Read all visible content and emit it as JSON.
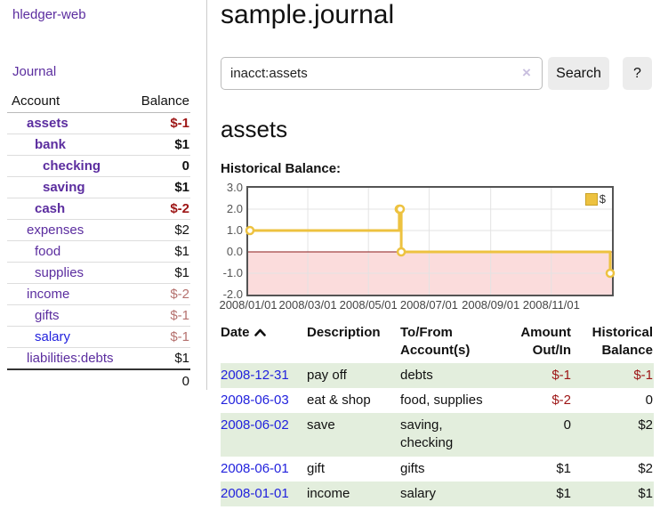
{
  "colors": {
    "purple": "#5b2d9f",
    "linkblue": "#2222dd",
    "negred": "#9d1515",
    "dimred": "#b5716e",
    "rowgreen": "#e3eedd",
    "seriesyellow": "#edc240",
    "pinkregion": "#fbdcdc",
    "zeroline": "#8b1a1a"
  },
  "sidebar": {
    "brand": "hledger-web",
    "journal_label": "Journal",
    "accounts_table": {
      "headers": {
        "account": "Account",
        "balance": "Balance"
      },
      "rows": [
        {
          "label": "assets",
          "depth": 1,
          "bold": true,
          "balance": "$-1",
          "tone": "neg"
        },
        {
          "label": "bank",
          "depth": 2,
          "bold": true,
          "balance": "$1",
          "tone": "pos"
        },
        {
          "label": "checking",
          "depth": 3,
          "bold": true,
          "balance": "0",
          "tone": "pos"
        },
        {
          "label": "saving",
          "depth": 3,
          "bold": true,
          "balance": "$1",
          "tone": "pos"
        },
        {
          "label": "cash",
          "depth": 2,
          "bold": true,
          "balance": "$-2",
          "tone": "neg"
        },
        {
          "label": "expenses",
          "depth": 1,
          "bold": false,
          "balance": "$2",
          "tone": "pos"
        },
        {
          "label": "food",
          "depth": 2,
          "bold": false,
          "balance": "$1",
          "tone": "pos"
        },
        {
          "label": "supplies",
          "depth": 2,
          "bold": false,
          "balance": "$1",
          "tone": "pos"
        },
        {
          "label": "income",
          "depth": 1,
          "bold": false,
          "balance": "$-2",
          "tone": "dim"
        },
        {
          "label": "gifts",
          "depth": 2,
          "bold": false,
          "balance": "$-1",
          "tone": "dim"
        },
        {
          "label": "salary",
          "depth": 2,
          "bold": false,
          "blue": true,
          "balance": "$-1",
          "tone": "dim"
        },
        {
          "label": "liabilities:debts",
          "depth": 1,
          "bold": false,
          "balance": "$1",
          "tone": "pos"
        }
      ],
      "total": "0"
    }
  },
  "header": {
    "title": "sample.journal"
  },
  "search": {
    "query": "inacct:assets",
    "clear_icon": "×",
    "search_label": "Search",
    "help_label": "?"
  },
  "account_page": {
    "heading": "assets",
    "chart_label": "Historical Balance:"
  },
  "chart_data": {
    "type": "line",
    "title": "Historical Balance",
    "step": true,
    "x": [
      "2008-01-01",
      "2008-06-01",
      "2008-06-02",
      "2008-06-03",
      "2008-12-31"
    ],
    "values": [
      1,
      2,
      2,
      0,
      -1
    ],
    "series": [
      {
        "name": "$",
        "color": "#edc240",
        "values": [
          1,
          2,
          2,
          0,
          -1
        ]
      }
    ],
    "xrange": [
      "2008-01-01",
      "2009-01-01"
    ],
    "ylim": [
      -2,
      3
    ],
    "yticks": [
      "3.0",
      "2.0",
      "1.0",
      "0.0",
      "-1.0",
      "-2.0"
    ],
    "xticks": [
      "2008/01/01",
      "2008/03/01",
      "2008/05/01",
      "2008/07/01",
      "2008/09/01",
      "2008/11/01"
    ],
    "grid": true,
    "legend_position": "top-right",
    "legend": [
      {
        "label": "$",
        "color": "#edc240"
      }
    ],
    "negative_region": {
      "below": 0,
      "color": "#fbdcdc"
    },
    "zero_line_color": "#8b1a1a"
  },
  "register": {
    "sort": {
      "column": "date",
      "direction": "asc",
      "icon": "chevron-up-icon"
    },
    "headers": {
      "date": "Date",
      "description": "Description",
      "accounts": "To/From Account(s)",
      "amount": "Amount Out/In",
      "balance": "Historical Balance"
    },
    "rows": [
      {
        "date": "2008-12-31",
        "description": "pay off",
        "accounts": "debts",
        "amount": "$-1",
        "amount_neg": true,
        "balance": "$-1",
        "balance_neg": true,
        "highlight": true
      },
      {
        "date": "2008-06-03",
        "description": "eat & shop",
        "accounts": "food, supplies",
        "amount": "$-2",
        "amount_neg": true,
        "balance": "0",
        "balance_neg": false,
        "highlight": false
      },
      {
        "date": "2008-06-02",
        "description": "save",
        "accounts": "saving, checking",
        "amount": "0",
        "amount_neg": false,
        "balance": "$2",
        "balance_neg": false,
        "highlight": true
      },
      {
        "date": "2008-06-01",
        "description": "gift",
        "accounts": "gifts",
        "amount": "$1",
        "amount_neg": false,
        "balance": "$2",
        "balance_neg": false,
        "highlight": false
      },
      {
        "date": "2008-01-01",
        "description": "income",
        "accounts": "salary",
        "amount": "$1",
        "amount_neg": false,
        "balance": "$1",
        "balance_neg": false,
        "highlight": true
      }
    ]
  }
}
